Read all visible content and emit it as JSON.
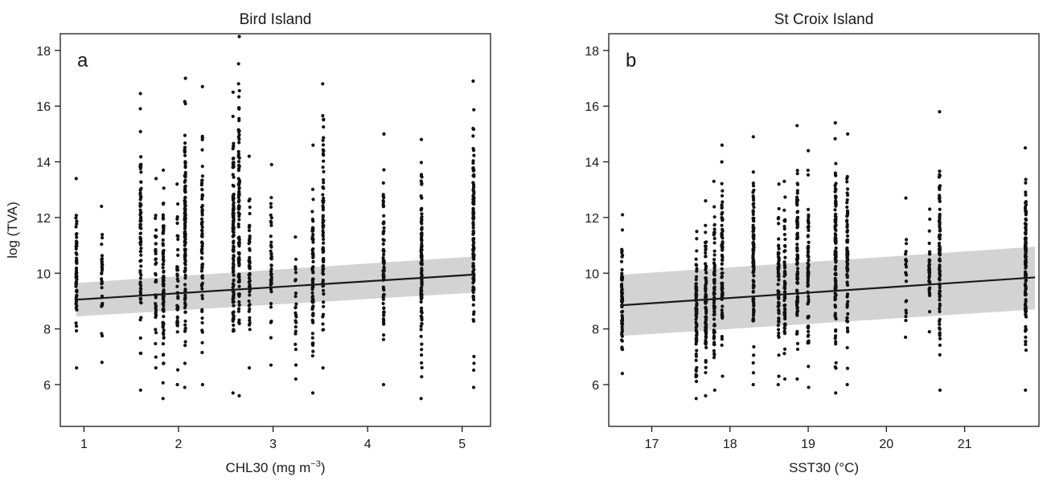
{
  "chart_data": [
    {
      "type": "scatter",
      "panel_label": "a",
      "title": "Bird Island",
      "xlabel": "CHL30 (mg m",
      "xlabel_sup": "−3",
      "xlabel_end": ")",
      "ylabel": "log (TVA)",
      "xlim": [
        0.75,
        5.3
      ],
      "ylim": [
        4.5,
        18.6
      ],
      "xticks": [
        1,
        2,
        3,
        4,
        5
      ],
      "yticks": [
        6,
        8,
        10,
        12,
        14,
        16,
        18
      ],
      "point_color": "#111111",
      "fit_line": {
        "x": [
          0.92,
          5.12
        ],
        "y": [
          9.05,
          9.95
        ]
      },
      "confidence_band": {
        "x": [
          0.92,
          5.12
        ],
        "lower": [
          8.45,
          9.3
        ],
        "upper": [
          9.65,
          10.6
        ]
      },
      "columns": [
        {
          "x": 0.92,
          "min": 6.6,
          "max": 13.4,
          "n": 60
        },
        {
          "x": 1.19,
          "min": 6.8,
          "max": 12.4,
          "n": 30
        },
        {
          "x": 1.6,
          "min": 5.8,
          "max": 16.45,
          "n": 80
        },
        {
          "x": 1.76,
          "min": 6.6,
          "max": 13.4,
          "n": 40
        },
        {
          "x": 1.84,
          "min": 5.5,
          "max": 13.7,
          "n": 90
        },
        {
          "x": 1.99,
          "min": 6.0,
          "max": 13.2,
          "n": 45
        },
        {
          "x": 2.07,
          "min": 5.9,
          "max": 17.0,
          "n": 130
        },
        {
          "x": 2.25,
          "min": 6.0,
          "max": 16.7,
          "n": 70
        },
        {
          "x": 2.58,
          "min": 5.7,
          "max": 16.5,
          "n": 130
        },
        {
          "x": 2.64,
          "min": 5.6,
          "max": 18.5,
          "n": 110
        },
        {
          "x": 2.75,
          "min": 6.6,
          "max": 14.2,
          "n": 60
        },
        {
          "x": 2.98,
          "min": 6.7,
          "max": 13.9,
          "n": 40
        },
        {
          "x": 3.24,
          "min": 6.2,
          "max": 11.3,
          "n": 25
        },
        {
          "x": 3.42,
          "min": 5.7,
          "max": 14.6,
          "n": 80
        },
        {
          "x": 3.53,
          "min": 6.6,
          "max": 16.8,
          "n": 80
        },
        {
          "x": 4.17,
          "min": 6.0,
          "max": 15.0,
          "n": 80
        },
        {
          "x": 4.57,
          "min": 5.5,
          "max": 14.8,
          "n": 110
        },
        {
          "x": 5.12,
          "min": 5.9,
          "max": 16.9,
          "n": 130
        }
      ]
    },
    {
      "type": "scatter",
      "panel_label": "b",
      "title": "St Croix Island",
      "xlabel": "SST30 (°C)",
      "ylabel": "",
      "xlim": [
        16.45,
        21.95
      ],
      "ylim": [
        4.5,
        18.6
      ],
      "xticks": [
        17,
        18,
        19,
        20,
        21
      ],
      "yticks": [
        6,
        8,
        10,
        12,
        14,
        16,
        18
      ],
      "point_color": "#111111",
      "fit_line": {
        "x": [
          16.62,
          21.9
        ],
        "y": [
          8.85,
          9.85
        ]
      },
      "confidence_band": {
        "x": [
          16.62,
          21.9
        ],
        "lower": [
          7.75,
          8.7
        ],
        "upper": [
          9.95,
          10.95
        ]
      },
      "columns": [
        {
          "x": 16.62,
          "min": 6.4,
          "max": 12.1,
          "n": 70
        },
        {
          "x": 17.57,
          "min": 5.5,
          "max": 11.5,
          "n": 80
        },
        {
          "x": 17.69,
          "min": 5.6,
          "max": 12.6,
          "n": 80
        },
        {
          "x": 17.8,
          "min": 5.8,
          "max": 13.3,
          "n": 80
        },
        {
          "x": 17.9,
          "min": 6.3,
          "max": 14.6,
          "n": 80
        },
        {
          "x": 18.3,
          "min": 6.0,
          "max": 14.9,
          "n": 110
        },
        {
          "x": 18.62,
          "min": 6.0,
          "max": 13.2,
          "n": 70
        },
        {
          "x": 18.7,
          "min": 6.2,
          "max": 13.3,
          "n": 70
        },
        {
          "x": 18.86,
          "min": 6.2,
          "max": 15.3,
          "n": 100
        },
        {
          "x": 19.0,
          "min": 5.9,
          "max": 14.4,
          "n": 80
        },
        {
          "x": 19.35,
          "min": 5.7,
          "max": 15.4,
          "n": 110
        },
        {
          "x": 19.5,
          "min": 6.0,
          "max": 15.0,
          "n": 80
        },
        {
          "x": 20.25,
          "min": 7.7,
          "max": 12.7,
          "n": 20
        },
        {
          "x": 20.55,
          "min": 7.9,
          "max": 12.3,
          "n": 40
        },
        {
          "x": 20.68,
          "min": 5.8,
          "max": 15.8,
          "n": 100
        },
        {
          "x": 21.78,
          "min": 5.8,
          "max": 14.5,
          "n": 130
        }
      ]
    }
  ]
}
